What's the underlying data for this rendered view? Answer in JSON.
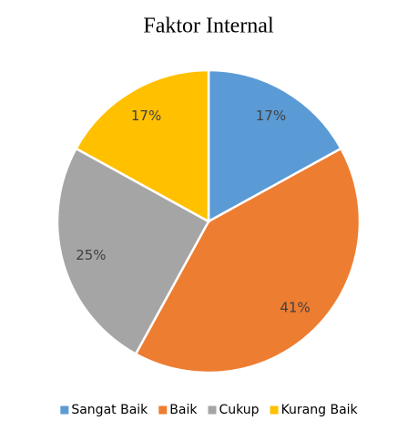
{
  "chart_data": {
    "type": "pie",
    "title": "Faktor Internal",
    "categories": [
      "Sangat Baik",
      "Baik",
      "Cukup",
      "Kurang Baik"
    ],
    "values": [
      17,
      41,
      25,
      17
    ],
    "value_labels": [
      "17%",
      "41%",
      "25%",
      "17%"
    ],
    "colors": [
      "#5b9bd5",
      "#ed7d31",
      "#a5a5a5",
      "#ffc000"
    ],
    "legend": "bottom"
  }
}
